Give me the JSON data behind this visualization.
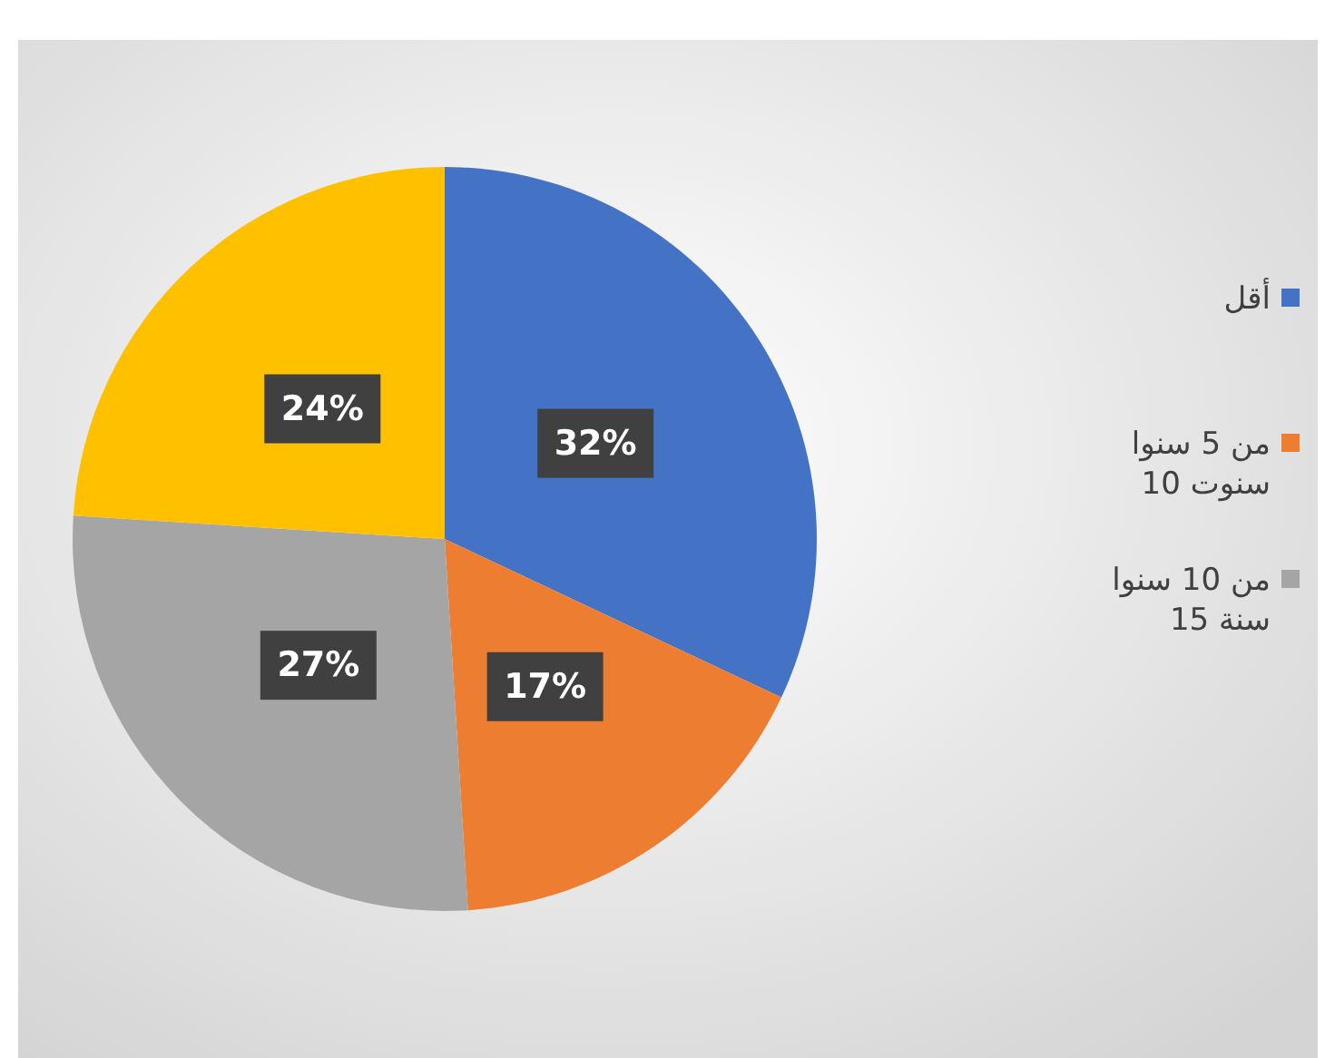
{
  "chart_data": {
    "type": "pie",
    "categories": [
      "أقل",
      "من 5 سنوا\n10 سنوت",
      "من 10 سنوا\n15 سنة",
      null
    ],
    "values": [
      32,
      17,
      27,
      24
    ],
    "colors": [
      "#4472c4",
      "#ed7d31",
      "#a5a5a5",
      "#ffc000"
    ],
    "value_labels": [
      "32%",
      "17%",
      "27%",
      "24%"
    ],
    "legend": "right"
  }
}
